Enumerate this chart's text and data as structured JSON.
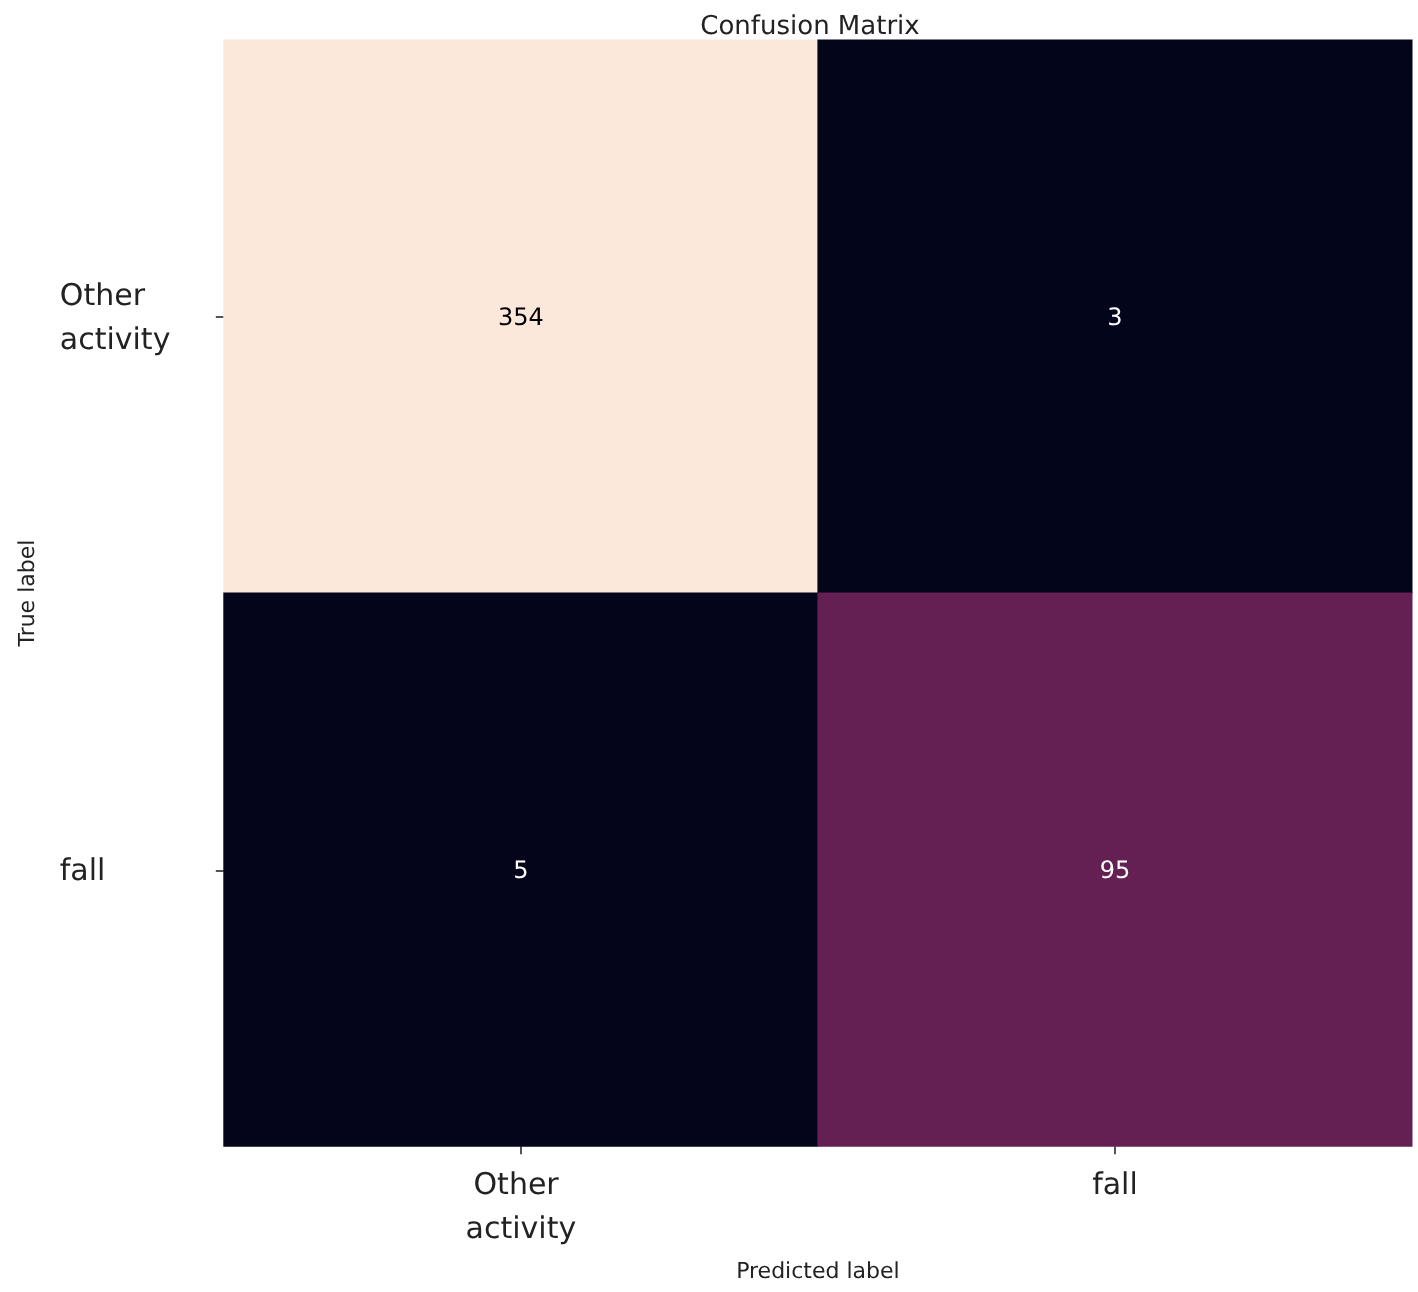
{
  "chart_data": {
    "type": "heatmap",
    "title": "Confusion Matrix",
    "xlabel": "Predicted label",
    "ylabel": "True label",
    "categories": [
      "Other activity",
      "fall"
    ],
    "y_categories": [
      "Other activity",
      "fall"
    ],
    "cells": [
      [
        354,
        3
      ],
      [
        5,
        95
      ]
    ],
    "colors": [
      "#fbe8da",
      "#03051a",
      "#04051b",
      "#641f53"
    ],
    "data_labels": true,
    "grid": false
  }
}
